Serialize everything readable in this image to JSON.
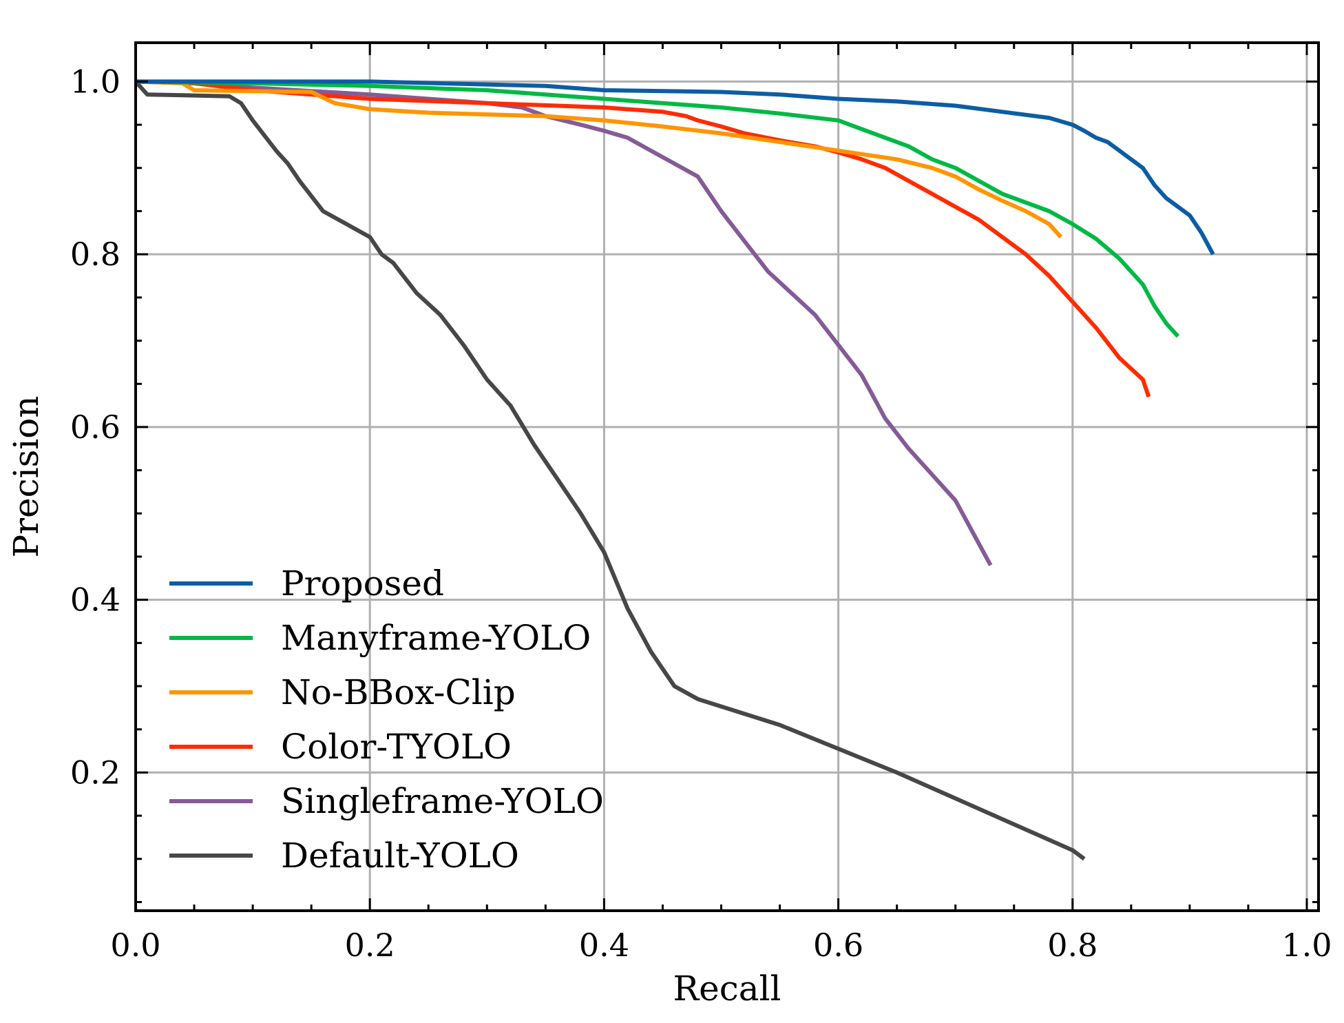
{
  "chart_data": {
    "type": "line",
    "title": "",
    "xlabel": "Recall",
    "ylabel": "Precision",
    "xlim": [
      0.0,
      1.01
    ],
    "ylim": [
      0.04,
      1.045
    ],
    "xticks": [
      0.0,
      0.2,
      0.4,
      0.6,
      0.8,
      1.0
    ],
    "xtick_labels": [
      "0.0",
      "0.2",
      "0.4",
      "0.6",
      "0.8",
      "1.0"
    ],
    "yticks": [
      0.2,
      0.4,
      0.6,
      0.8,
      1.0
    ],
    "ytick_labels": [
      "0.2",
      "0.4",
      "0.6",
      "0.8",
      "1.0"
    ],
    "grid": true,
    "legend_position": "lower-left",
    "series": [
      {
        "name": "Proposed",
        "color": "#0C5DA5",
        "points": [
          [
            0.0,
            1.0
          ],
          [
            0.2,
            1.0
          ],
          [
            0.35,
            0.995
          ],
          [
            0.4,
            0.99
          ],
          [
            0.5,
            0.988
          ],
          [
            0.55,
            0.985
          ],
          [
            0.6,
            0.98
          ],
          [
            0.65,
            0.977
          ],
          [
            0.7,
            0.972
          ],
          [
            0.74,
            0.965
          ],
          [
            0.78,
            0.958
          ],
          [
            0.8,
            0.95
          ],
          [
            0.81,
            0.943
          ],
          [
            0.82,
            0.935
          ],
          [
            0.83,
            0.93
          ],
          [
            0.84,
            0.92
          ],
          [
            0.85,
            0.91
          ],
          [
            0.86,
            0.9
          ],
          [
            0.87,
            0.88
          ],
          [
            0.88,
            0.865
          ],
          [
            0.89,
            0.855
          ],
          [
            0.9,
            0.845
          ],
          [
            0.91,
            0.825
          ],
          [
            0.92,
            0.8
          ]
        ]
      },
      {
        "name": "Manyframe-YOLO",
        "color": "#00B945",
        "points": [
          [
            0.0,
            1.0
          ],
          [
            0.1,
            0.998
          ],
          [
            0.2,
            0.995
          ],
          [
            0.3,
            0.99
          ],
          [
            0.35,
            0.985
          ],
          [
            0.4,
            0.98
          ],
          [
            0.45,
            0.975
          ],
          [
            0.5,
            0.97
          ],
          [
            0.55,
            0.963
          ],
          [
            0.6,
            0.955
          ],
          [
            0.62,
            0.945
          ],
          [
            0.64,
            0.935
          ],
          [
            0.66,
            0.925
          ],
          [
            0.68,
            0.91
          ],
          [
            0.7,
            0.9
          ],
          [
            0.72,
            0.885
          ],
          [
            0.74,
            0.87
          ],
          [
            0.76,
            0.86
          ],
          [
            0.78,
            0.85
          ],
          [
            0.8,
            0.835
          ],
          [
            0.82,
            0.818
          ],
          [
            0.84,
            0.795
          ],
          [
            0.86,
            0.765
          ],
          [
            0.87,
            0.74
          ],
          [
            0.88,
            0.72
          ],
          [
            0.89,
            0.705
          ]
        ]
      },
      {
        "name": "No-BBox-Clip",
        "color": "#FF9500",
        "points": [
          [
            0.0,
            1.0
          ],
          [
            0.04,
            0.998
          ],
          [
            0.05,
            0.99
          ],
          [
            0.15,
            0.988
          ],
          [
            0.17,
            0.975
          ],
          [
            0.2,
            0.968
          ],
          [
            0.25,
            0.964
          ],
          [
            0.3,
            0.962
          ],
          [
            0.35,
            0.96
          ],
          [
            0.4,
            0.955
          ],
          [
            0.45,
            0.948
          ],
          [
            0.5,
            0.94
          ],
          [
            0.55,
            0.93
          ],
          [
            0.6,
            0.92
          ],
          [
            0.65,
            0.91
          ],
          [
            0.68,
            0.9
          ],
          [
            0.7,
            0.89
          ],
          [
            0.72,
            0.875
          ],
          [
            0.74,
            0.862
          ],
          [
            0.76,
            0.85
          ],
          [
            0.78,
            0.835
          ],
          [
            0.79,
            0.82
          ]
        ]
      },
      {
        "name": "Color-TYOLO",
        "color": "#FF2C00",
        "points": [
          [
            0.0,
            1.0
          ],
          [
            0.05,
            0.998
          ],
          [
            0.1,
            0.99
          ],
          [
            0.2,
            0.98
          ],
          [
            0.3,
            0.975
          ],
          [
            0.4,
            0.97
          ],
          [
            0.45,
            0.965
          ],
          [
            0.47,
            0.96
          ],
          [
            0.48,
            0.955
          ],
          [
            0.5,
            0.948
          ],
          [
            0.52,
            0.94
          ],
          [
            0.55,
            0.932
          ],
          [
            0.58,
            0.925
          ],
          [
            0.6,
            0.918
          ],
          [
            0.62,
            0.91
          ],
          [
            0.64,
            0.9
          ],
          [
            0.66,
            0.885
          ],
          [
            0.68,
            0.87
          ],
          [
            0.7,
            0.855
          ],
          [
            0.72,
            0.84
          ],
          [
            0.74,
            0.82
          ],
          [
            0.76,
            0.8
          ],
          [
            0.78,
            0.775
          ],
          [
            0.8,
            0.745
          ],
          [
            0.82,
            0.715
          ],
          [
            0.84,
            0.68
          ],
          [
            0.86,
            0.655
          ],
          [
            0.865,
            0.635
          ]
        ]
      },
      {
        "name": "Singleframe-YOLO",
        "color": "#845B97",
        "points": [
          [
            0.0,
            1.0
          ],
          [
            0.05,
            0.998
          ],
          [
            0.1,
            0.993
          ],
          [
            0.2,
            0.985
          ],
          [
            0.3,
            0.975
          ],
          [
            0.33,
            0.97
          ],
          [
            0.35,
            0.96
          ],
          [
            0.38,
            0.95
          ],
          [
            0.4,
            0.943
          ],
          [
            0.42,
            0.935
          ],
          [
            0.44,
            0.92
          ],
          [
            0.46,
            0.905
          ],
          [
            0.48,
            0.89
          ],
          [
            0.49,
            0.87
          ],
          [
            0.5,
            0.85
          ],
          [
            0.52,
            0.815
          ],
          [
            0.54,
            0.78
          ],
          [
            0.56,
            0.755
          ],
          [
            0.58,
            0.73
          ],
          [
            0.6,
            0.695
          ],
          [
            0.62,
            0.66
          ],
          [
            0.64,
            0.61
          ],
          [
            0.66,
            0.575
          ],
          [
            0.68,
            0.545
          ],
          [
            0.7,
            0.515
          ],
          [
            0.71,
            0.49
          ],
          [
            0.72,
            0.465
          ],
          [
            0.73,
            0.44
          ]
        ]
      },
      {
        "name": "Default-YOLO",
        "color": "#474747",
        "points": [
          [
            0.0,
            1.0
          ],
          [
            0.01,
            0.985
          ],
          [
            0.08,
            0.983
          ],
          [
            0.09,
            0.975
          ],
          [
            0.1,
            0.955
          ],
          [
            0.12,
            0.92
          ],
          [
            0.13,
            0.905
          ],
          [
            0.14,
            0.885
          ],
          [
            0.16,
            0.85
          ],
          [
            0.18,
            0.835
          ],
          [
            0.2,
            0.82
          ],
          [
            0.21,
            0.8
          ],
          [
            0.22,
            0.79
          ],
          [
            0.24,
            0.755
          ],
          [
            0.26,
            0.73
          ],
          [
            0.28,
            0.695
          ],
          [
            0.3,
            0.655
          ],
          [
            0.32,
            0.625
          ],
          [
            0.34,
            0.58
          ],
          [
            0.36,
            0.54
          ],
          [
            0.38,
            0.5
          ],
          [
            0.4,
            0.455
          ],
          [
            0.42,
            0.39
          ],
          [
            0.44,
            0.34
          ],
          [
            0.46,
            0.3
          ],
          [
            0.48,
            0.285
          ],
          [
            0.55,
            0.255
          ],
          [
            0.65,
            0.2
          ],
          [
            0.75,
            0.14
          ],
          [
            0.8,
            0.11
          ],
          [
            0.81,
            0.1
          ]
        ]
      }
    ]
  }
}
